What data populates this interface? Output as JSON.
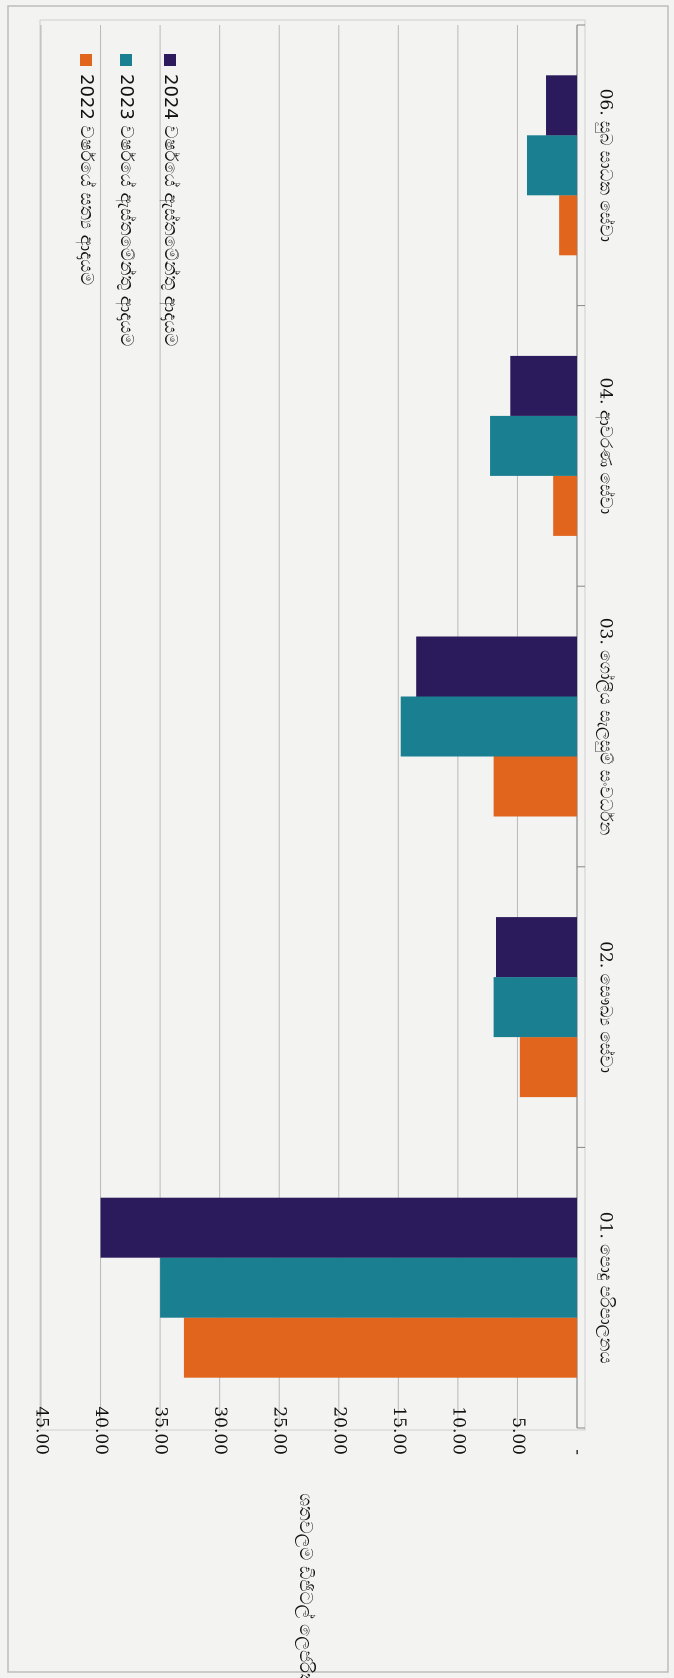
{
  "chart_data": {
    "type": "bar",
    "orientation": "horizontal",
    "title": "",
    "ylabel": "ශතවලම ඩිජිටල් ලෙජරිත අපරාධ",
    "xlabel": "",
    "xlim": [
      0,
      45
    ],
    "ticks": [
      {
        "value": 0,
        "label": "-"
      },
      {
        "value": 5,
        "label": "5.00"
      },
      {
        "value": 10,
        "label": "10.00"
      },
      {
        "value": 15,
        "label": "15.00"
      },
      {
        "value": 20,
        "label": "20.00"
      },
      {
        "value": 25,
        "label": "25.00"
      },
      {
        "value": 30,
        "label": "30.00"
      },
      {
        "value": 35,
        "label": "35.00"
      },
      {
        "value": 40,
        "label": "40.00"
      },
      {
        "value": 45,
        "label": "45.00"
      }
    ],
    "grid": true,
    "legend_position": "top-right",
    "categories": [
      "01. පොදු පරිපාලනය",
      "02. සෞඛ්‍ය සේවා",
      "03. ගෝලීය සැලසුම් සංවර්ධන",
      "04. ආවරණ සේවා",
      "06. සුබ සාධක සේවා"
    ],
    "series": [
      {
        "name": "2022 වර්ෂයේ සත්‍ය ආදායම",
        "color": "#e2651e",
        "values": [
          33.0,
          4.8,
          7.0,
          2.0,
          1.5
        ]
      },
      {
        "name": "2023 වර්ෂයේ ඇස්තමේන්තු ආදායම",
        "color": "#1b7f92",
        "values": [
          35.0,
          7.0,
          14.8,
          7.3,
          4.2
        ]
      },
      {
        "name": "2024 වර්ෂයේ ඇස්තමේන්තු ආදායම",
        "color": "#2b1a5c",
        "values": [
          40.0,
          6.8,
          13.5,
          5.6,
          2.6
        ]
      }
    ]
  }
}
